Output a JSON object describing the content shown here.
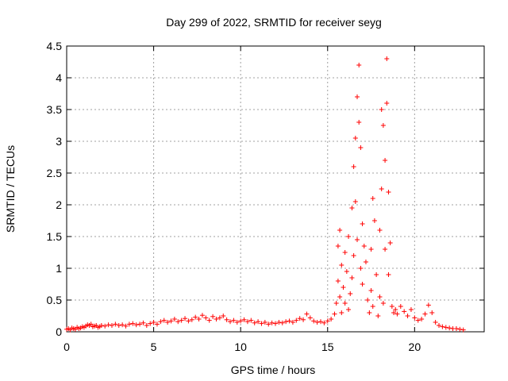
{
  "chart_data": {
    "type": "scatter",
    "title": "Day 299 of 2022, SRMTID for receiver seyg",
    "xlabel": "GPS time / hours",
    "ylabel": "SRMTID / TECUs",
    "xlim": [
      0,
      24
    ],
    "ylim": [
      0,
      4.5
    ],
    "x_ticks": [
      0,
      5,
      10,
      15,
      20
    ],
    "y_ticks": [
      0,
      0.5,
      1,
      1.5,
      2,
      2.5,
      3,
      3.5,
      4,
      4.5
    ],
    "x_tick_labels": [
      "0",
      "5",
      "10",
      "15",
      "20"
    ],
    "y_tick_labels": [
      "0",
      "0.5",
      "1",
      "1.5",
      "2",
      "2.5",
      "3",
      "3.5",
      "4",
      "4.5"
    ],
    "grid": true,
    "marker": "+",
    "series": [
      {
        "name": "SRMTID",
        "color": "#ff0000",
        "points": [
          [
            0.0,
            0.04
          ],
          [
            0.1,
            0.05
          ],
          [
            0.2,
            0.03
          ],
          [
            0.3,
            0.06
          ],
          [
            0.4,
            0.05
          ],
          [
            0.5,
            0.04
          ],
          [
            0.6,
            0.07
          ],
          [
            0.7,
            0.05
          ],
          [
            0.8,
            0.06
          ],
          [
            0.9,
            0.08
          ],
          [
            1.0,
            0.07
          ],
          [
            1.1,
            0.09
          ],
          [
            1.2,
            0.11
          ],
          [
            1.3,
            0.1
          ],
          [
            1.4,
            0.12
          ],
          [
            1.5,
            0.08
          ],
          [
            1.6,
            0.09
          ],
          [
            1.7,
            0.1
          ],
          [
            1.8,
            0.07
          ],
          [
            1.9,
            0.08
          ],
          [
            2.0,
            0.1
          ],
          [
            2.2,
            0.09
          ],
          [
            2.4,
            0.11
          ],
          [
            2.6,
            0.1
          ],
          [
            2.8,
            0.12
          ],
          [
            3.0,
            0.1
          ],
          [
            3.2,
            0.11
          ],
          [
            3.4,
            0.09
          ],
          [
            3.6,
            0.12
          ],
          [
            3.8,
            0.13
          ],
          [
            4.0,
            0.11
          ],
          [
            4.2,
            0.12
          ],
          [
            4.4,
            0.14
          ],
          [
            4.6,
            0.1
          ],
          [
            4.8,
            0.13
          ],
          [
            5.0,
            0.15
          ],
          [
            5.2,
            0.12
          ],
          [
            5.4,
            0.16
          ],
          [
            5.6,
            0.18
          ],
          [
            5.8,
            0.15
          ],
          [
            6.0,
            0.17
          ],
          [
            6.2,
            0.2
          ],
          [
            6.4,
            0.16
          ],
          [
            6.6,
            0.18
          ],
          [
            6.8,
            0.21
          ],
          [
            7.0,
            0.17
          ],
          [
            7.2,
            0.19
          ],
          [
            7.4,
            0.23
          ],
          [
            7.6,
            0.2
          ],
          [
            7.8,
            0.26
          ],
          [
            8.0,
            0.22
          ],
          [
            8.2,
            0.18
          ],
          [
            8.4,
            0.24
          ],
          [
            8.6,
            0.2
          ],
          [
            8.8,
            0.22
          ],
          [
            9.0,
            0.25
          ],
          [
            9.2,
            0.19
          ],
          [
            9.4,
            0.16
          ],
          [
            9.6,
            0.18
          ],
          [
            9.8,
            0.15
          ],
          [
            10.0,
            0.17
          ],
          [
            10.2,
            0.19
          ],
          [
            10.4,
            0.16
          ],
          [
            10.6,
            0.18
          ],
          [
            10.8,
            0.14
          ],
          [
            11.0,
            0.16
          ],
          [
            11.2,
            0.13
          ],
          [
            11.4,
            0.15
          ],
          [
            11.6,
            0.12
          ],
          [
            11.8,
            0.14
          ],
          [
            12.0,
            0.13
          ],
          [
            12.2,
            0.15
          ],
          [
            12.4,
            0.14
          ],
          [
            12.6,
            0.16
          ],
          [
            12.8,
            0.17
          ],
          [
            13.0,
            0.15
          ],
          [
            13.2,
            0.18
          ],
          [
            13.4,
            0.21
          ],
          [
            13.6,
            0.19
          ],
          [
            13.8,
            0.28
          ],
          [
            14.0,
            0.22
          ],
          [
            14.2,
            0.17
          ],
          [
            14.4,
            0.15
          ],
          [
            14.6,
            0.16
          ],
          [
            14.8,
            0.14
          ],
          [
            15.0,
            0.17
          ],
          [
            15.2,
            0.2
          ],
          [
            15.4,
            0.28
          ],
          [
            15.5,
            0.45
          ],
          [
            15.6,
            0.8
          ],
          [
            15.6,
            1.35
          ],
          [
            15.7,
            1.6
          ],
          [
            15.7,
            0.55
          ],
          [
            15.8,
            1.05
          ],
          [
            15.8,
            0.3
          ],
          [
            15.9,
            0.7
          ],
          [
            16.0,
            1.25
          ],
          [
            16.0,
            0.45
          ],
          [
            16.1,
            0.95
          ],
          [
            16.2,
            0.35
          ],
          [
            16.2,
            1.5
          ],
          [
            16.3,
            0.6
          ],
          [
            16.4,
            1.95
          ],
          [
            16.4,
            0.85
          ],
          [
            16.5,
            2.6
          ],
          [
            16.5,
            1.2
          ],
          [
            16.6,
            3.05
          ],
          [
            16.6,
            2.05
          ],
          [
            16.7,
            3.7
          ],
          [
            16.7,
            1.45
          ],
          [
            16.8,
            4.2
          ],
          [
            16.8,
            3.3
          ],
          [
            16.9,
            2.9
          ],
          [
            16.9,
            1.0
          ],
          [
            17.0,
            1.7
          ],
          [
            17.0,
            0.75
          ],
          [
            17.1,
            1.35
          ],
          [
            17.2,
            1.1
          ],
          [
            17.3,
            0.5
          ],
          [
            17.4,
            0.3
          ],
          [
            17.5,
            0.65
          ],
          [
            17.5,
            1.3
          ],
          [
            17.6,
            2.1
          ],
          [
            17.6,
            0.4
          ],
          [
            17.7,
            1.75
          ],
          [
            17.8,
            0.9
          ],
          [
            17.9,
            0.25
          ],
          [
            18.0,
            0.55
          ],
          [
            18.0,
            1.6
          ],
          [
            18.1,
            3.5
          ],
          [
            18.1,
            2.25
          ],
          [
            18.2,
            3.25
          ],
          [
            18.2,
            0.45
          ],
          [
            18.3,
            2.7
          ],
          [
            18.3,
            1.3
          ],
          [
            18.4,
            4.3
          ],
          [
            18.4,
            3.6
          ],
          [
            18.5,
            2.2
          ],
          [
            18.5,
            0.9
          ],
          [
            18.6,
            1.4
          ],
          [
            18.7,
            0.4
          ],
          [
            18.8,
            0.3
          ],
          [
            18.9,
            0.35
          ],
          [
            19.0,
            0.28
          ],
          [
            19.2,
            0.4
          ],
          [
            19.4,
            0.32
          ],
          [
            19.6,
            0.25
          ],
          [
            19.8,
            0.35
          ],
          [
            20.0,
            0.22
          ],
          [
            20.2,
            0.18
          ],
          [
            20.4,
            0.2
          ],
          [
            20.6,
            0.28
          ],
          [
            20.8,
            0.42
          ],
          [
            21.0,
            0.3
          ],
          [
            21.2,
            0.15
          ],
          [
            21.4,
            0.1
          ],
          [
            21.6,
            0.08
          ],
          [
            21.8,
            0.07
          ],
          [
            22.0,
            0.06
          ],
          [
            22.2,
            0.05
          ],
          [
            22.4,
            0.05
          ],
          [
            22.6,
            0.04
          ],
          [
            22.8,
            0.03
          ]
        ]
      }
    ]
  }
}
